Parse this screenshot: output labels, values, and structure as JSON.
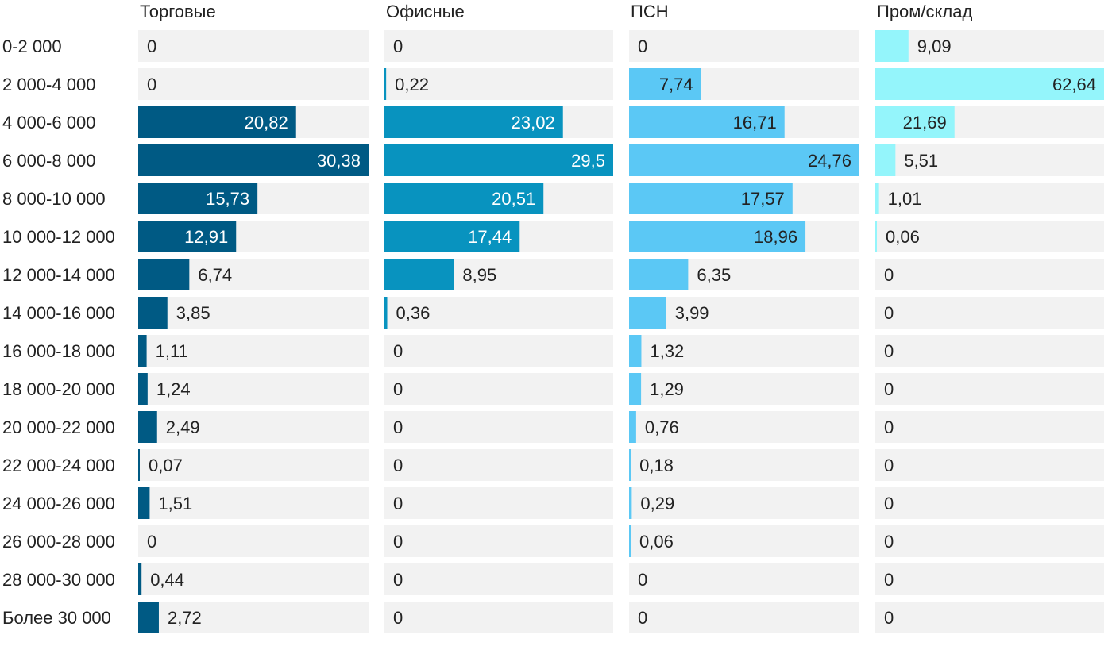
{
  "chart_data": {
    "type": "bar",
    "orientation": "horizontal",
    "layout": "small-multiples",
    "categories": [
      "0-2 000",
      "2 000-4 000",
      "4 000-6 000",
      "6 000-8 000",
      "8 000-10 000",
      "10 000-12 000",
      "12 000-14 000",
      "14 000-16 000",
      "16 000-18 000",
      "18 000-20 000",
      "20 000-22 000",
      "22 000-24 000",
      "24 000-26 000",
      "26 000-28 000",
      "28 000-30 000",
      "Более 30 000"
    ],
    "series": [
      {
        "name": "Торговые",
        "color": "#005a84",
        "labels": [
          "0",
          "0",
          "20,82",
          "30,38",
          "15,73",
          "12,91",
          "6,74",
          "3,85",
          "1,11",
          "1,24",
          "2,49",
          "0,07",
          "1,51",
          "0",
          "0,44",
          "2,72"
        ],
        "values": [
          0,
          0,
          20.82,
          30.38,
          15.73,
          12.91,
          6.74,
          3.85,
          1.11,
          1.24,
          2.49,
          0.07,
          1.51,
          0,
          0.44,
          2.72
        ]
      },
      {
        "name": "Офисные",
        "color": "#0893bf",
        "labels": [
          "0",
          "0,22",
          "23,02",
          "29,5",
          "20,51",
          "17,44",
          "8,95",
          "0,36",
          "0",
          "0",
          "0",
          "0",
          "0",
          "0",
          "0",
          "0"
        ],
        "values": [
          0,
          0.22,
          23.02,
          29.5,
          20.51,
          17.44,
          8.95,
          0.36,
          0,
          0,
          0,
          0,
          0,
          0,
          0,
          0
        ]
      },
      {
        "name": "ПСН",
        "color": "#5bc8f5",
        "labels": [
          "0",
          "7,74",
          "16,71",
          "24,76",
          "17,57",
          "18,96",
          "6,35",
          "3,99",
          "1,32",
          "1,29",
          "0,76",
          "0,18",
          "0,29",
          "0,06",
          "0",
          "0"
        ],
        "values": [
          0,
          7.74,
          16.71,
          24.76,
          17.57,
          18.96,
          6.35,
          3.99,
          1.32,
          1.29,
          0.76,
          0.18,
          0.29,
          0.06,
          0,
          0
        ]
      },
      {
        "name": "Пром/склад",
        "color": "#94f5fb",
        "labels": [
          "9,09",
          "62,64",
          "21,69",
          "5,51",
          "1,01",
          "0,06",
          "0",
          "0",
          "0",
          "0",
          "0",
          "0",
          "0",
          "0",
          "0",
          "0"
        ],
        "values": [
          9.09,
          62.64,
          21.69,
          5.51,
          1.01,
          0.06,
          0,
          0,
          0,
          0,
          0,
          0,
          0,
          0,
          0,
          0
        ]
      }
    ],
    "grid": false,
    "legend": "none",
    "colors": {
      "track": "#f2f2f2",
      "text_dark": "#222222",
      "text_light": "#ffffff"
    }
  }
}
